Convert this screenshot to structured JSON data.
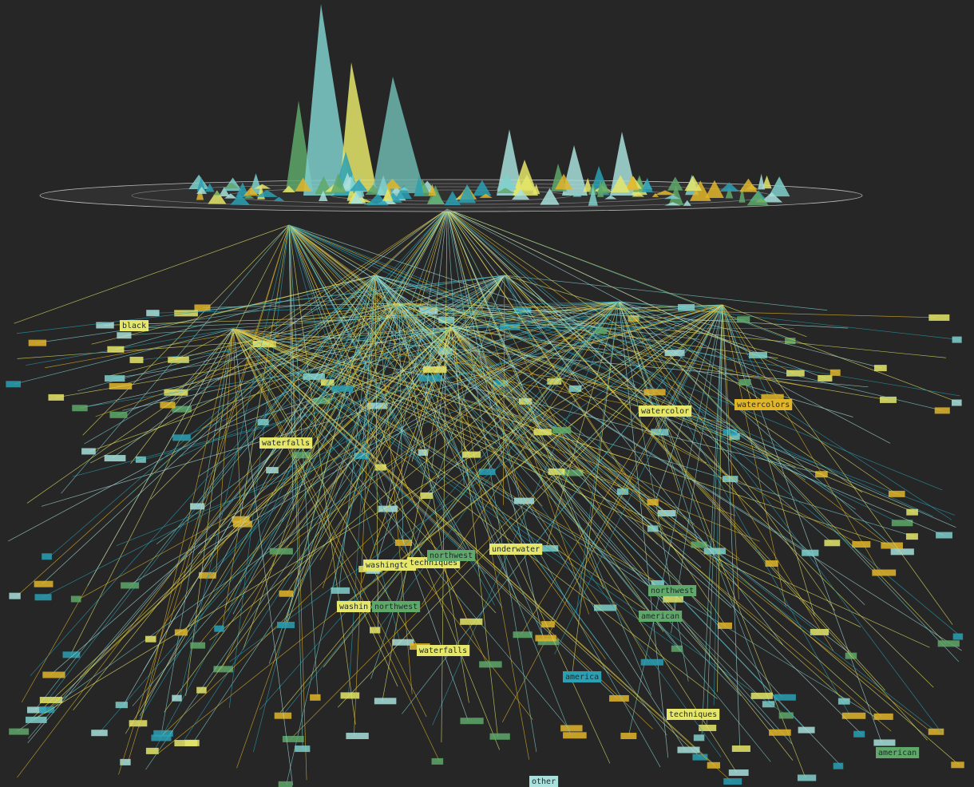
{
  "labels": [
    "washington",
    "techniques",
    "northwest",
    "waterfalls",
    "waterfalls",
    "underwater",
    "washin",
    "northwest",
    "northwest",
    "american",
    "american",
    "watercolor",
    "watercolors",
    "techniques",
    "other",
    "america",
    "black"
  ]
}
